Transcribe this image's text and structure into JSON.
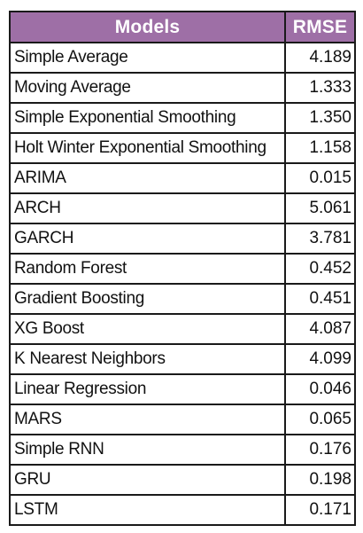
{
  "table": {
    "headers": {
      "model": "Models",
      "rmse": "RMSE"
    },
    "rows": [
      {
        "model": "Simple Average",
        "rmse": "4.189"
      },
      {
        "model": "Moving Average",
        "rmse": "1.333"
      },
      {
        "model": "Simple Exponential Smoothing",
        "rmse": "1.350"
      },
      {
        "model": "Holt Winter Exponential Smoothing",
        "rmse": "1.158"
      },
      {
        "model": "ARIMA",
        "rmse": "0.015"
      },
      {
        "model": "ARCH",
        "rmse": "5.061"
      },
      {
        "model": "GARCH",
        "rmse": "3.781"
      },
      {
        "model": "Random Forest",
        "rmse": "0.452"
      },
      {
        "model": "Gradient Boosting",
        "rmse": "0.451"
      },
      {
        "model": "XG Boost",
        "rmse": "4.087"
      },
      {
        "model": "K Nearest Neighbors",
        "rmse": "4.099"
      },
      {
        "model": "Linear Regression",
        "rmse": "0.046"
      },
      {
        "model": "MARS",
        "rmse": "0.065"
      },
      {
        "model": "Simple RNN",
        "rmse": "0.176"
      },
      {
        "model": "GRU",
        "rmse": "0.198"
      },
      {
        "model": "LSTM",
        "rmse": "0.171"
      }
    ]
  },
  "colors": {
    "header_bg": "#9e6fa6",
    "header_text": "#ffffff",
    "border": "#1a1a1a"
  }
}
